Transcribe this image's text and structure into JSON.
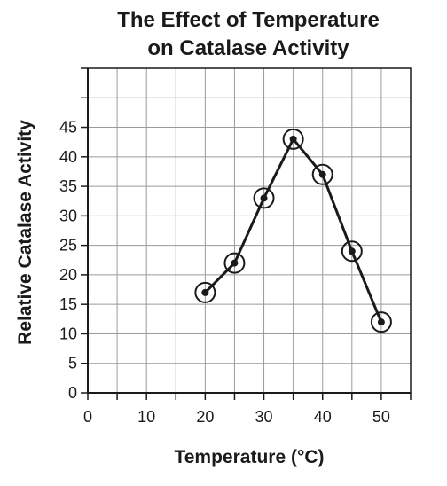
{
  "chart_data": {
    "type": "line",
    "title": "The Effect of Temperature on Catalase Activity",
    "title_lines": [
      "The Effect of Temperature",
      "on Catalase Activity"
    ],
    "xlabel": "Temperature (°C)",
    "ylabel": "Relative Catalase Activity",
    "x": [
      20,
      25,
      30,
      35,
      40,
      45,
      50
    ],
    "y": [
      17,
      22,
      33,
      43,
      37,
      24,
      12
    ],
    "xlim": [
      0,
      55
    ],
    "ylim": [
      0,
      55
    ],
    "x_tick_labels": [
      "0",
      "10",
      "20",
      "30",
      "40",
      "50"
    ],
    "y_tick_labels": [
      "0",
      "5",
      "10",
      "15",
      "20",
      "25",
      "30",
      "35",
      "40",
      "45"
    ],
    "grid": true,
    "legend": "none",
    "line_color": "#1a1a1a",
    "grid_color": "#9a9a9a"
  }
}
